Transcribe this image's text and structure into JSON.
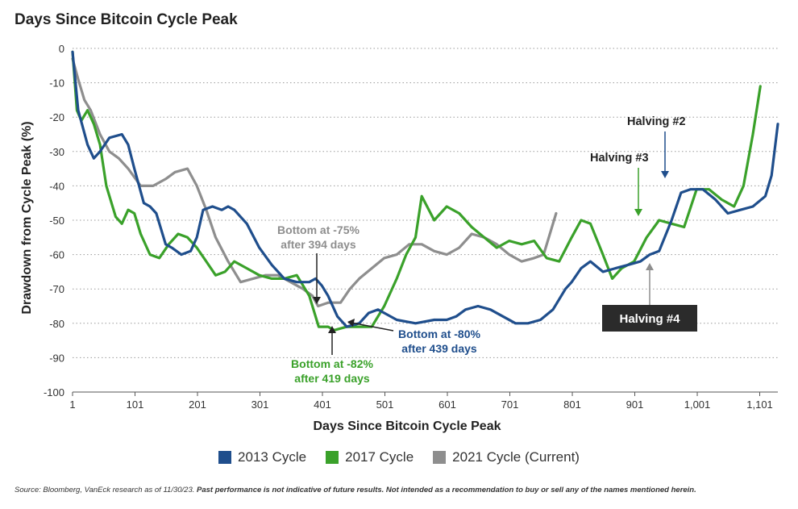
{
  "title": "Days Since Bitcoin Cycle Peak",
  "source_prefix": "Source: Bloomberg, VanEck research as of 11/30/23. ",
  "source_disclaimer": "Past performance is not indicative of future results. Not intended as a recommendation to buy or sell any of the names mentioned herein.",
  "chart_data": {
    "type": "line",
    "title": "Days Since Bitcoin Cycle Peak",
    "xlabel": "Days Since Bitcoin Cycle Peak",
    "ylabel": "Drawdown from Cycle Peak (%)",
    "xlim": [
      1,
      1130
    ],
    "ylim": [
      -100,
      0
    ],
    "x_ticks": [
      1,
      101,
      201,
      301,
      401,
      501,
      601,
      701,
      801,
      901,
      1001,
      1101
    ],
    "x_tick_labels": [
      "1",
      "101",
      "201",
      "301",
      "401",
      "501",
      "601",
      "701",
      "801",
      "901",
      "1,001",
      "1,101"
    ],
    "y_ticks": [
      0,
      -10,
      -20,
      -30,
      -40,
      -50,
      -60,
      -70,
      -80,
      -90,
      -100
    ],
    "y_tick_labels": [
      "0",
      "-10",
      "-20",
      "-30",
      "-40",
      "-50",
      "-60",
      "-70",
      "-80",
      "-90",
      "-100"
    ],
    "grid": "horizontal dotted",
    "legend_position": "bottom",
    "series": [
      {
        "name": "2013 Cycle",
        "color": "#1f4e8c",
        "x": [
          1,
          10,
          25,
          35,
          45,
          60,
          80,
          90,
          100,
          115,
          125,
          135,
          150,
          160,
          175,
          190,
          200,
          210,
          225,
          240,
          250,
          260,
          280,
          300,
          320,
          340,
          360,
          380,
          390,
          400,
          410,
          425,
          440,
          460,
          475,
          490,
          500,
          520,
          550,
          580,
          600,
          615,
          630,
          650,
          670,
          690,
          710,
          730,
          750,
          770,
          790,
          800,
          815,
          830,
          850,
          870,
          890,
          910,
          925,
          940,
          960,
          975,
          990,
          1010,
          1030,
          1050,
          1070,
          1090,
          1110,
          1120,
          1130
        ],
        "values": [
          -1,
          -18,
          -28,
          -32,
          -30,
          -26,
          -25,
          -28,
          -35,
          -45,
          -46,
          -48,
          -57,
          -58,
          -60,
          -59,
          -55,
          -47,
          -46,
          -47,
          -46,
          -47,
          -51,
          -58,
          -63,
          -67,
          -68,
          -68,
          -67,
          -69,
          -72,
          -78,
          -81,
          -80,
          -77,
          -76,
          -77,
          -79,
          -80,
          -79,
          -79,
          -78,
          -76,
          -75,
          -76,
          -78,
          -80,
          -80,
          -79,
          -76,
          -70,
          -68,
          -64,
          -62,
          -65,
          -64,
          -63,
          -62,
          -60,
          -59,
          -50,
          -42,
          -41,
          -41,
          -44,
          -48,
          -47,
          -46,
          -43,
          -37,
          -22
        ]
      },
      {
        "name": "2017 Cycle",
        "color": "#3aa12a",
        "x": [
          1,
          8,
          15,
          25,
          35,
          45,
          55,
          70,
          80,
          90,
          100,
          110,
          125,
          140,
          155,
          170,
          185,
          200,
          215,
          230,
          245,
          260,
          280,
          300,
          320,
          340,
          360,
          380,
          395,
          410,
          420,
          440,
          460,
          480,
          500,
          520,
          535,
          550,
          560,
          580,
          600,
          620,
          640,
          660,
          680,
          700,
          720,
          740,
          760,
          780,
          800,
          815,
          830,
          850,
          865,
          880,
          900,
          920,
          940,
          960,
          980,
          1000,
          1020,
          1040,
          1060,
          1075,
          1090,
          1102
        ],
        "values": [
          -1,
          -18,
          -21,
          -18,
          -22,
          -28,
          -40,
          -49,
          -51,
          -47,
          -48,
          -54,
          -60,
          -61,
          -57,
          -54,
          -55,
          -58,
          -62,
          -66,
          -65,
          -62,
          -64,
          -66,
          -67,
          -67,
          -66,
          -72,
          -81,
          -81,
          -82,
          -81,
          -81,
          -81,
          -75,
          -67,
          -60,
          -55,
          -43,
          -50,
          -46,
          -48,
          -52,
          -55,
          -58,
          -56,
          -57,
          -56,
          -61,
          -62,
          -55,
          -50,
          -51,
          -60,
          -67,
          -64,
          -62,
          -55,
          -50,
          -51,
          -52,
          -41,
          -41,
          -44,
          -46,
          -40,
          -25,
          -11
        ]
      },
      {
        "name": "2021 Cycle (Current)",
        "color": "#8e8e8e",
        "x": [
          1,
          10,
          20,
          30,
          45,
          60,
          75,
          90,
          110,
          130,
          150,
          165,
          185,
          200,
          215,
          230,
          250,
          270,
          290,
          310,
          330,
          350,
          370,
          385,
          394,
          410,
          420,
          430,
          445,
          460,
          480,
          500,
          520,
          540,
          560,
          580,
          600,
          620,
          640,
          660,
          680,
          700,
          720,
          740,
          755,
          775
        ],
        "values": [
          -3,
          -9,
          -15,
          -18,
          -25,
          -30,
          -32,
          -35,
          -40,
          -40,
          -38,
          -36,
          -35,
          -40,
          -47,
          -55,
          -62,
          -68,
          -67,
          -66,
          -66,
          -68,
          -70,
          -72,
          -75,
          -74,
          -74,
          -74,
          -70,
          -67,
          -64,
          -61,
          -60,
          -57,
          -57,
          -59,
          -60,
          -58,
          -54,
          -55,
          -57,
          -60,
          -62,
          -61,
          -60,
          -48
        ]
      }
    ],
    "annotations": [
      {
        "text": "Halving #2",
        "color": "#1f4e8c"
      },
      {
        "text": "Halving #3",
        "color": "#3aa12a"
      },
      {
        "text": "Halving #4",
        "color": "#ffffff",
        "box": "#2b2b2b"
      },
      {
        "text_line1": "Bottom at -75%",
        "text_line2": "after 394 days",
        "color": "#8e8e8e"
      },
      {
        "text_line1": "Bottom at -80%",
        "text_line2": "after 439 days",
        "color": "#1f4e8c"
      },
      {
        "text_line1": "Bottom at -82%",
        "text_line2": "after 419 days",
        "color": "#3aa12a"
      }
    ]
  }
}
